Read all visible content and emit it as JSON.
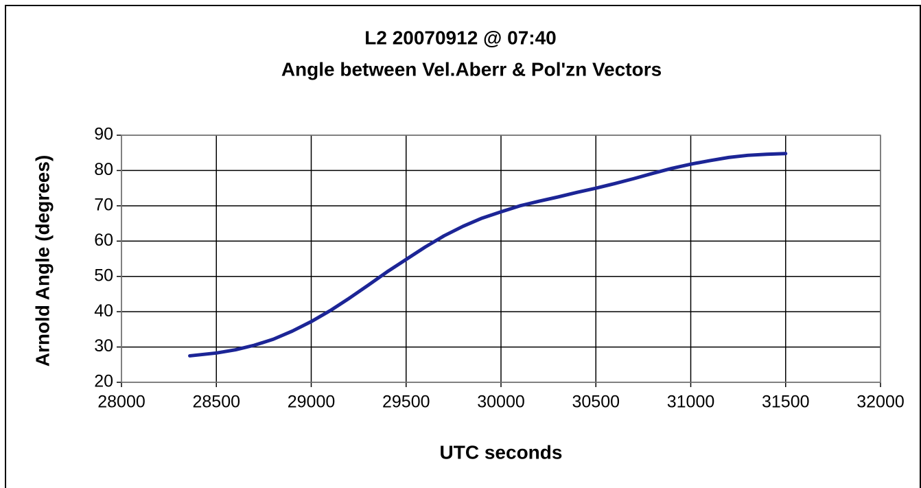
{
  "chart_data": {
    "type": "line",
    "title": "L2 20070912 @ 07:40",
    "subtitle": "Angle between Vel.Aberr & Pol'zn Vectors",
    "x_label": "UTC seconds",
    "y_label": "Arnold Angle (degrees)",
    "x": [
      28360,
      28500,
      28600,
      28700,
      28800,
      28900,
      29000,
      29100,
      29200,
      29300,
      29400,
      29500,
      29600,
      29700,
      29800,
      29900,
      30000,
      30100,
      30200,
      30300,
      30400,
      30500,
      30600,
      30700,
      30800,
      30900,
      31000,
      31100,
      31200,
      31300,
      31400,
      31500
    ],
    "series": [
      {
        "color": "#1c2596",
        "values": [
          27.5,
          28.3,
          29.2,
          30.5,
          32.2,
          34.5,
          37.2,
          40.3,
          43.8,
          47.5,
          51.3,
          54.8,
          58.3,
          61.5,
          64.2,
          66.5,
          68.3,
          70.0,
          71.3,
          72.5,
          73.8,
          75.0,
          76.3,
          77.7,
          79.2,
          80.6,
          81.8,
          82.8,
          83.7,
          84.3,
          84.6,
          84.8
        ]
      }
    ],
    "xlim": [
      28000,
      32000
    ],
    "xticks": [
      28000,
      28500,
      29000,
      29500,
      30000,
      30500,
      31000,
      31500,
      32000
    ],
    "ylim": [
      20,
      90
    ],
    "yticks": [
      20,
      30,
      40,
      50,
      60,
      70,
      80,
      90
    ],
    "grid": true
  }
}
